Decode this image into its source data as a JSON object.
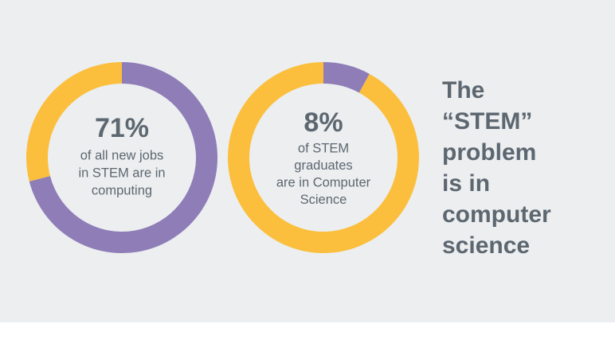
{
  "chart_data": [
    {
      "type": "donut",
      "values": [
        71,
        29
      ],
      "value_labels": [
        "71%",
        null
      ],
      "colors": [
        "#8e7db7",
        "#fbbf3d"
      ],
      "caption": [
        "of all new jobs",
        "in STEM are in",
        "computing"
      ]
    },
    {
      "type": "donut",
      "values": [
        8,
        92
      ],
      "value_labels": [
        "8%",
        null
      ],
      "colors": [
        "#8e7db7",
        "#fbbf3d"
      ],
      "caption": [
        "of STEM",
        "graduates",
        "are in Computer",
        "Science"
      ]
    }
  ],
  "headline": [
    "The",
    "“STEM”",
    "problem",
    "is in",
    "computer",
    "science"
  ]
}
